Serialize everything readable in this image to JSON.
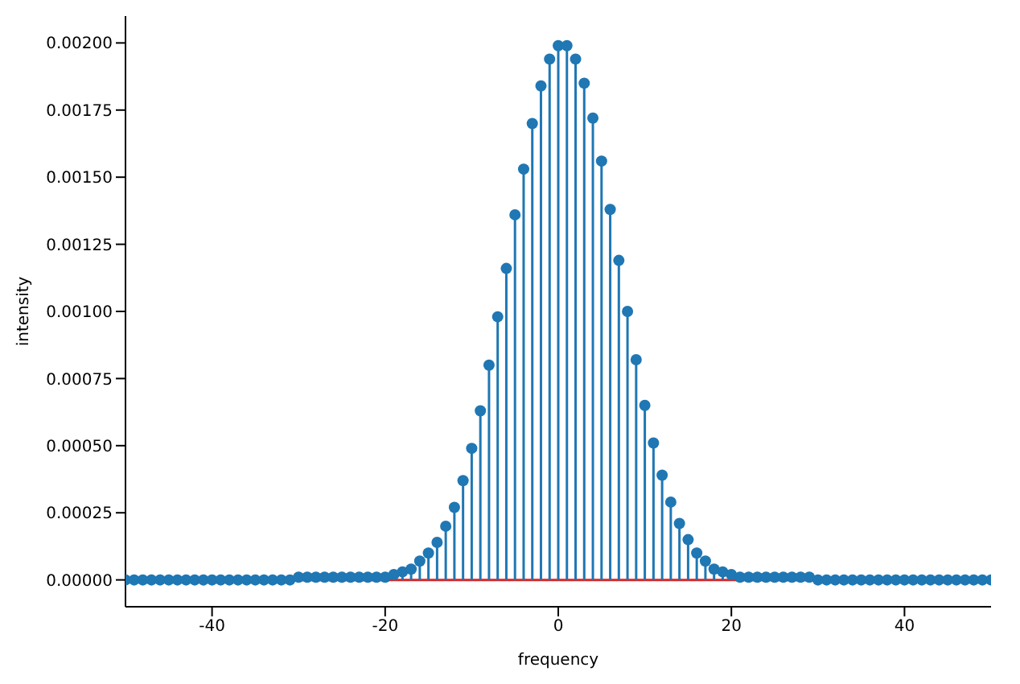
{
  "chart_data": {
    "type": "lollipop",
    "xlabel": "frequency",
    "ylabel": "intensity",
    "x": [
      -50,
      -49,
      -48,
      -47,
      -46,
      -45,
      -44,
      -43,
      -42,
      -41,
      -40,
      -39,
      -38,
      -37,
      -36,
      -35,
      -34,
      -33,
      -32,
      -31,
      -30,
      -29,
      -28,
      -27,
      -26,
      -25,
      -24,
      -23,
      -22,
      -21,
      -20,
      -19,
      -18,
      -17,
      -16,
      -15,
      -14,
      -13,
      -12,
      -11,
      -10,
      -9,
      -8,
      -7,
      -6,
      -5,
      -4,
      -3,
      -2,
      -1,
      0,
      1,
      2,
      3,
      4,
      5,
      6,
      7,
      8,
      9,
      10,
      11,
      12,
      13,
      14,
      15,
      16,
      17,
      18,
      19,
      20,
      21,
      22,
      23,
      24,
      25,
      26,
      27,
      28,
      29,
      30,
      31,
      32,
      33,
      34,
      35,
      36,
      37,
      38,
      39,
      40,
      41,
      42,
      43,
      44,
      45,
      46,
      47,
      48,
      49,
      50
    ],
    "series": [
      {
        "color": "#1f77b4",
        "values": [
          0,
          0,
          0,
          0,
          0,
          0,
          0,
          0,
          0,
          0,
          0,
          0,
          0,
          0,
          0,
          0,
          0,
          0,
          0,
          0,
          1e-05,
          1e-05,
          1e-05,
          1e-05,
          1e-05,
          1e-05,
          1e-05,
          1e-05,
          1e-05,
          1e-05,
          1e-05,
          2e-05,
          3e-05,
          4e-05,
          7e-05,
          0.0001,
          0.00014,
          0.0002,
          0.00027,
          0.00037,
          0.00049,
          0.00063,
          0.0008,
          0.00098,
          0.00116,
          0.00136,
          0.00153,
          0.0017,
          0.00184,
          0.00194,
          0.00199,
          0.00199,
          0.00194,
          0.00185,
          0.00172,
          0.00156,
          0.00138,
          0.00119,
          0.001,
          0.00082,
          0.00065,
          0.00051,
          0.00039,
          0.00029,
          0.00021,
          0.00015,
          0.0001,
          7e-05,
          4e-05,
          3e-05,
          2e-05,
          1e-05,
          1e-05,
          1e-05,
          1e-05,
          1e-05,
          1e-05,
          1e-05,
          1e-05,
          1e-05,
          0,
          0,
          0,
          0,
          0,
          0,
          0,
          0,
          0,
          0,
          0,
          0,
          0,
          0,
          0,
          0,
          0,
          0,
          0,
          0,
          0
        ]
      }
    ],
    "xlim": [
      -50,
      50
    ],
    "xticks": [
      -40,
      -20,
      0,
      20,
      40
    ],
    "ylim": [
      -0.0001,
      0.0021
    ],
    "yticks": [
      {
        "value": 0,
        "label": "0.00000"
      },
      {
        "value": 0.00025,
        "label": "0.00025"
      },
      {
        "value": 0.0005,
        "label": "0.00050"
      },
      {
        "value": 0.00075,
        "label": "0.00075"
      },
      {
        "value": 0.001,
        "label": "0.00100"
      },
      {
        "value": 0.00125,
        "label": "0.00125"
      },
      {
        "value": 0.0015,
        "label": "0.00150"
      },
      {
        "value": 0.00175,
        "label": "0.00175"
      },
      {
        "value": 0.002,
        "label": "0.00200"
      }
    ],
    "ref_lines": [
      {
        "axis": "y",
        "value": 0,
        "color": "#d62728"
      }
    ],
    "marker": "circle",
    "grid": false,
    "legend": false
  }
}
